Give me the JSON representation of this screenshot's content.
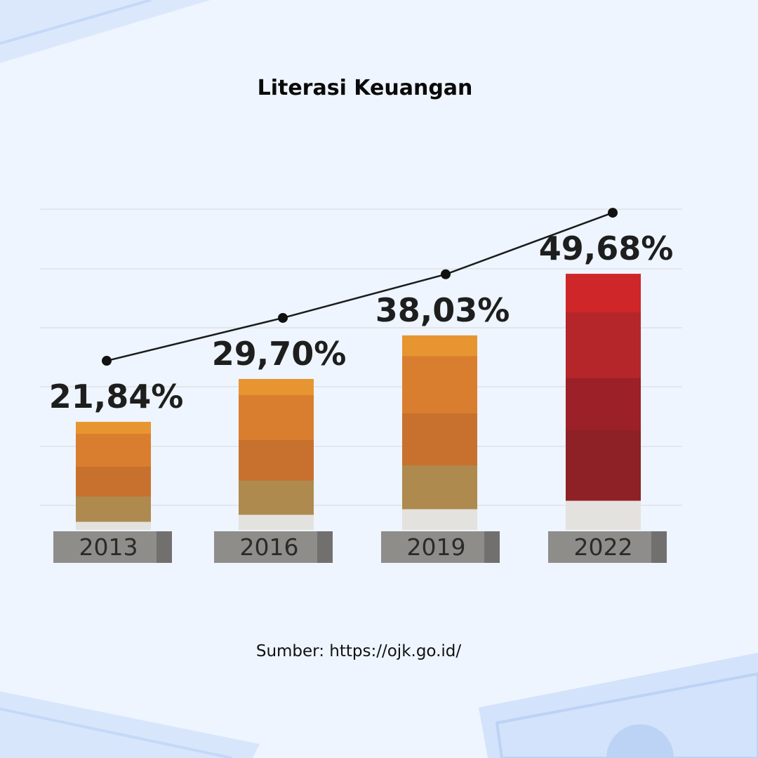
{
  "title": "Literasi Keuangan",
  "source": "Sumber: https://ojk.go.id/",
  "colors": {
    "background": "#eef5fe",
    "orange_top": "#e79531",
    "orange_mid": "#d97e2f",
    "orange_dark": "#c8712e",
    "tan": "#ae8a4f",
    "red_top": "#cf262a",
    "red_mid": "#b5262b",
    "red_dark": "#9c2028",
    "red_base": "#8e2126",
    "plinth": "#e4e2df",
    "label_bg": "#8e8d8a",
    "trend_line": "#1c1c1c"
  },
  "chart_data": {
    "type": "bar",
    "categories": [
      "2013",
      "2016",
      "2019",
      "2022"
    ],
    "values": [
      21.84,
      29.7,
      38.03,
      49.68
    ],
    "value_labels": [
      "21,84%",
      "29,70%",
      "38,03%",
      "49,68%"
    ],
    "unit": "%",
    "title": "Literasi Keuangan",
    "trend_line": true,
    "highlight_last": true,
    "grid": true
  }
}
